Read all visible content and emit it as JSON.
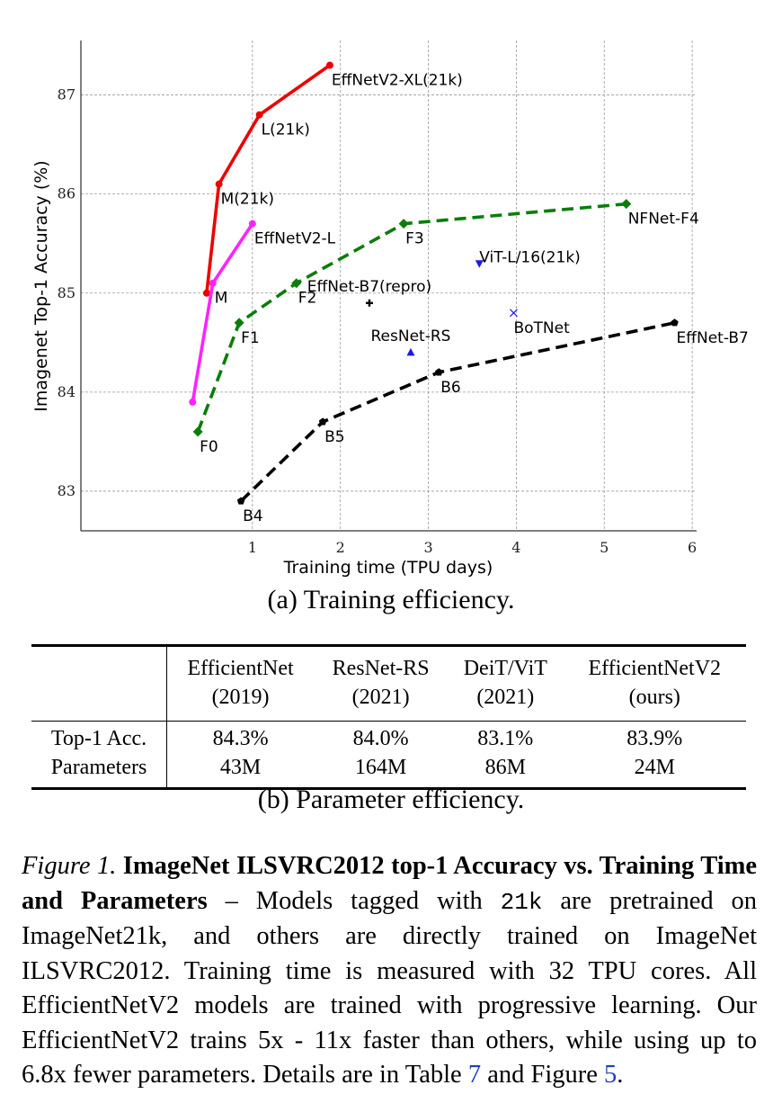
{
  "chart_data": {
    "type": "line",
    "xlabel": "Training time (TPU days)",
    "ylabel": "Imagenet Top-1 Accuracy (%)",
    "xlim": [
      -0.95,
      6.05
    ],
    "ylim": [
      82.6,
      87.55
    ],
    "xticks": [
      1,
      2,
      3,
      4,
      5,
      6
    ],
    "yticks": [
      83,
      84,
      85,
      86,
      87
    ],
    "grid": true,
    "series": [
      {
        "name": "EffNetV2-XL(21k)",
        "color": "#ee0000",
        "style": "solid",
        "marker": "circle",
        "points": [
          {
            "x": 0.48,
            "y": 85.0,
            "label": ""
          },
          {
            "x": 0.62,
            "y": 86.1,
            "label": "M(21k)"
          },
          {
            "x": 1.08,
            "y": 86.8,
            "label": "L(21k)"
          },
          {
            "x": 1.88,
            "y": 87.3,
            "label": "EffNetV2-XL(21k)"
          }
        ]
      },
      {
        "name": "EffNetV2-L",
        "color": "#ff22ff",
        "style": "solid",
        "marker": "circle",
        "points": [
          {
            "x": 0.32,
            "y": 83.9,
            "label": ""
          },
          {
            "x": 0.55,
            "y": 85.1,
            "label": "M"
          },
          {
            "x": 1.0,
            "y": 85.7,
            "label": "EffNetV2-L"
          }
        ]
      },
      {
        "name": "NFNet-F4",
        "color": "#0a7d0a",
        "style": "dashed",
        "marker": "diamond",
        "points": [
          {
            "x": 0.38,
            "y": 83.6,
            "label": "F0"
          },
          {
            "x": 0.85,
            "y": 84.7,
            "label": "F1"
          },
          {
            "x": 1.5,
            "y": 85.1,
            "label": "F2"
          },
          {
            "x": 2.72,
            "y": 85.7,
            "label": "F3"
          },
          {
            "x": 5.25,
            "y": 85.9,
            "label": "NFNet-F4"
          }
        ]
      },
      {
        "name": "EffNet-B7",
        "color": "#000000",
        "style": "dashed",
        "marker": "pentagon",
        "points": [
          {
            "x": 0.87,
            "y": 82.9,
            "label": "B4"
          },
          {
            "x": 1.8,
            "y": 83.7,
            "label": "B5"
          },
          {
            "x": 3.12,
            "y": 84.2,
            "label": "B6"
          },
          {
            "x": 5.8,
            "y": 84.7,
            "label": "EffNet-B7"
          }
        ]
      }
    ],
    "singles": [
      {
        "label": "EffNet-B7(repro)",
        "x": 2.33,
        "y": 84.9,
        "marker": "plus",
        "color": "#000000"
      },
      {
        "label": "ResNet-RS",
        "x": 2.8,
        "y": 84.4,
        "marker": "triangle-up",
        "color": "#1a1aee"
      },
      {
        "label": "ViT-L/16(21k)",
        "x": 3.58,
        "y": 85.3,
        "marker": "triangle-down",
        "color": "#1a1aee"
      },
      {
        "label": "BoTNet",
        "x": 3.97,
        "y": 84.8,
        "marker": "x",
        "color": "#1a1aee"
      }
    ]
  },
  "captions": {
    "a": "(a) Training efficiency.",
    "b": "(b) Parameter efficiency."
  },
  "table": {
    "columns": [
      {
        "name": "EfficientNet",
        "year": "(2019)"
      },
      {
        "name": "ResNet-RS",
        "year": "(2021)"
      },
      {
        "name": "DeiT/ViT",
        "year": "(2021)"
      },
      {
        "name": "EfficientNetV2",
        "year": "(ours)"
      }
    ],
    "rows": [
      {
        "label": "Top-1 Acc.",
        "values": [
          "84.3%",
          "84.0%",
          "83.1%",
          "83.9%"
        ]
      },
      {
        "label": "Parameters",
        "values": [
          "43M",
          "164M",
          "86M",
          "24M"
        ]
      }
    ]
  },
  "figure_caption": {
    "fig_num": "Figure 1.",
    "title": "ImageNet ILSVRC2012 top-1 Accuracy vs. Training Time and Parameters",
    "body_1": " – Models tagged with ",
    "code": "21k",
    "body_2": " are pretrained on ImageNet21k, and others are directly trained on ImageNet ILSVRC2012. Training time is measured with 32 TPU cores. All EfficientNetV2 models are trained with progressive learning. Our EfficientNetV2 trains 5x - 11x faster than others, while using up to 6.8x fewer parameters. Details are in Table ",
    "ref_table": "7",
    "body_3": " and Figure ",
    "ref_figure": "5",
    "body_4": "."
  }
}
